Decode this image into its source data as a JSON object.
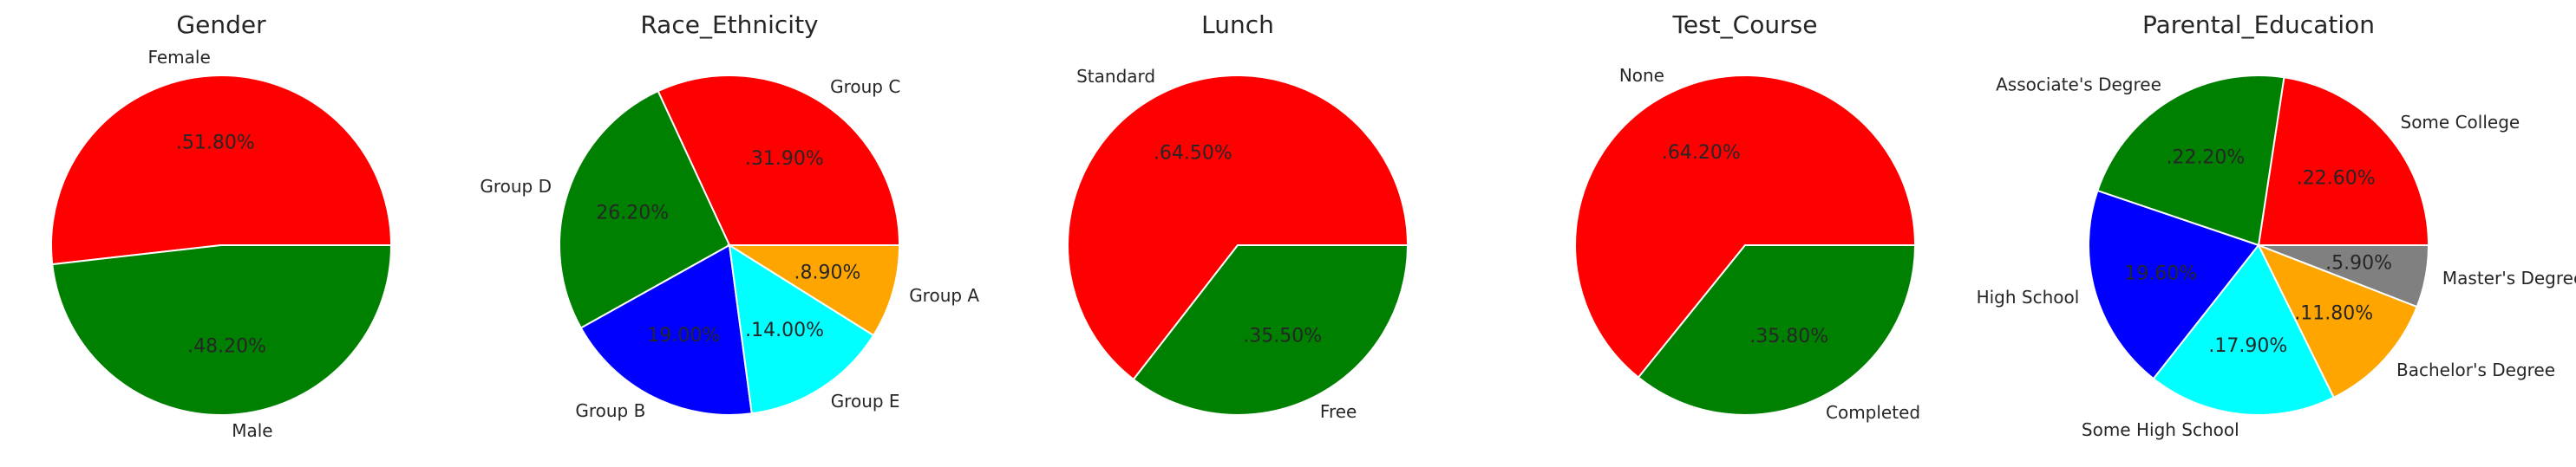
{
  "chart_data": [
    {
      "type": "pie",
      "title": "Gender",
      "labels": [
        "Female",
        "Male"
      ],
      "values": [
        51.8,
        48.2
      ],
      "pct_labels": [
        ".51.80%",
        ".48.20%"
      ],
      "colors": [
        "#ff0000",
        "#008000"
      ]
    },
    {
      "type": "pie",
      "title": "Race_Ethnicity",
      "labels": [
        "Group C",
        "Group D",
        "Group B",
        "Group E",
        "Group A"
      ],
      "values": [
        31.9,
        26.2,
        19.0,
        14.0,
        8.9
      ],
      "pct_labels": [
        ".31.90%",
        "26.20%",
        "19.00%",
        ".14.00%",
        ".8.90%"
      ],
      "colors": [
        "#ff0000",
        "#008000",
        "#0000ff",
        "#00ffff",
        "#ffa500"
      ]
    },
    {
      "type": "pie",
      "title": "Lunch",
      "labels": [
        "Standard",
        "Free"
      ],
      "values": [
        64.5,
        35.5
      ],
      "pct_labels": [
        ".64.50%",
        ".35.50%"
      ],
      "colors": [
        "#ff0000",
        "#008000"
      ]
    },
    {
      "type": "pie",
      "title": "Test_Course",
      "labels": [
        "None",
        "Completed"
      ],
      "values": [
        64.2,
        35.8
      ],
      "pct_labels": [
        ".64.20%",
        ".35.80%"
      ],
      "colors": [
        "#ff0000",
        "#008000"
      ]
    },
    {
      "type": "pie",
      "title": "Parental_Education",
      "labels": [
        "Some College",
        "Associate's Degree",
        "High School",
        "Some High School",
        "Bachelor's Degree",
        "Master's Degree"
      ],
      "values": [
        22.6,
        22.2,
        19.6,
        17.9,
        11.8,
        5.9
      ],
      "pct_labels": [
        ".22.60%",
        ".22.20%",
        "19.60%",
        ".17.90%",
        ".11.80%",
        ".5.90%"
      ],
      "colors": [
        "#ff0000",
        "#008000",
        "#0000ff",
        "#00ffff",
        "#ffa500",
        "#808080"
      ]
    }
  ]
}
